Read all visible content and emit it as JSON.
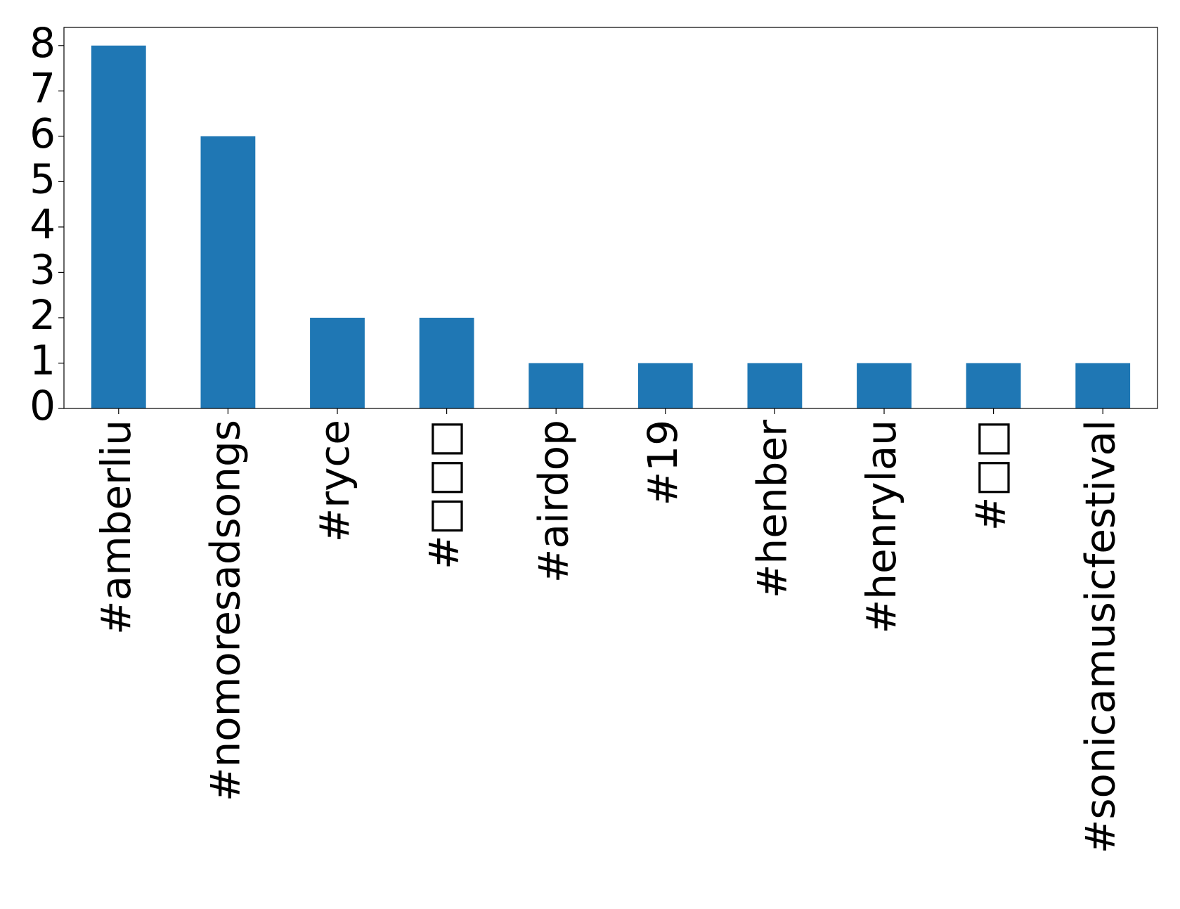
{
  "chart_data": {
    "type": "bar",
    "categories": [
      "#amberliu",
      "#nomoresadsongs",
      "#ryce",
      "#□□□",
      "#airdop",
      "#19",
      "#henber",
      "#henrylau",
      "#□□",
      "#sonicamusicfestival"
    ],
    "values": [
      8,
      6,
      2,
      2,
      1,
      1,
      1,
      1,
      1,
      1
    ],
    "color": "#1f77b4",
    "ylim": [
      0,
      8.4
    ],
    "yticks": [
      0,
      1,
      2,
      3,
      4,
      5,
      6,
      7,
      8
    ],
    "grid": false
  }
}
